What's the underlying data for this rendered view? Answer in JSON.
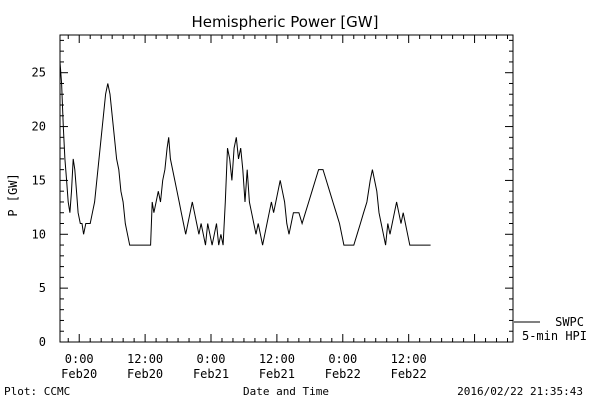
{
  "chart_data": {
    "type": "line",
    "title": "Hemispheric Power [GW]",
    "xlabel": "Date and Time",
    "ylabel": "P [GW]",
    "ylim": [
      0,
      28.5
    ],
    "xlim": [
      -3.5,
      79
    ],
    "grid": false,
    "legend_position": "bottom-right",
    "y_ticks": [
      0,
      5,
      10,
      15,
      20,
      25
    ],
    "x_ticks": [
      {
        "value": 0,
        "line1": "0:00",
        "line2": "Feb20"
      },
      {
        "value": 12,
        "line1": "12:00",
        "line2": "Feb20"
      },
      {
        "value": 24,
        "line1": "0:00",
        "line2": "Feb21"
      },
      {
        "value": 36,
        "line1": "12:00",
        "line2": "Feb21"
      },
      {
        "value": 48,
        "line1": "0:00",
        "line2": "Feb22"
      },
      {
        "value": 60,
        "line1": "12:00",
        "line2": "Feb22"
      }
    ],
    "series": [
      {
        "name": "SWPC",
        "values": [
          [
            -3.5,
            26
          ],
          [
            -3.2,
            24
          ],
          [
            -2.9,
            20
          ],
          [
            -2.6,
            17
          ],
          [
            -2.3,
            15
          ],
          [
            -2.0,
            13
          ],
          [
            -1.7,
            12
          ],
          [
            -1.4,
            14
          ],
          [
            -1.1,
            17
          ],
          [
            -0.8,
            16
          ],
          [
            -0.5,
            14
          ],
          [
            -0.2,
            12
          ],
          [
            0.2,
            11
          ],
          [
            0.5,
            11
          ],
          [
            0.8,
            10
          ],
          [
            1.2,
            11
          ],
          [
            1.6,
            11
          ],
          [
            2.0,
            11
          ],
          [
            2.4,
            12
          ],
          [
            2.8,
            13
          ],
          [
            3.2,
            15
          ],
          [
            3.6,
            17
          ],
          [
            4.0,
            19
          ],
          [
            4.4,
            21
          ],
          [
            4.8,
            23
          ],
          [
            5.2,
            24
          ],
          [
            5.6,
            23
          ],
          [
            6.0,
            21
          ],
          [
            6.4,
            19
          ],
          [
            6.8,
            17
          ],
          [
            7.2,
            16
          ],
          [
            7.6,
            14
          ],
          [
            8.0,
            13
          ],
          [
            8.4,
            11
          ],
          [
            8.8,
            10
          ],
          [
            9.2,
            9
          ],
          [
            10,
            9
          ],
          [
            11,
            9
          ],
          [
            12,
            9
          ],
          [
            13.0,
            9
          ],
          [
            13.3,
            13
          ],
          [
            13.6,
            12
          ],
          [
            14.0,
            13
          ],
          [
            14.4,
            14
          ],
          [
            14.8,
            13
          ],
          [
            15.2,
            15
          ],
          [
            15.6,
            16
          ],
          [
            16.0,
            18
          ],
          [
            16.3,
            19
          ],
          [
            16.6,
            17
          ],
          [
            17.0,
            16
          ],
          [
            17.4,
            15
          ],
          [
            17.8,
            14
          ],
          [
            18.2,
            13
          ],
          [
            18.6,
            12
          ],
          [
            19.0,
            11
          ],
          [
            19.4,
            10
          ],
          [
            19.8,
            11
          ],
          [
            20.2,
            12
          ],
          [
            20.6,
            13
          ],
          [
            21.0,
            12
          ],
          [
            21.4,
            11
          ],
          [
            21.8,
            10
          ],
          [
            22.2,
            11
          ],
          [
            22.6,
            10
          ],
          [
            23.0,
            9
          ],
          [
            23.4,
            11
          ],
          [
            23.8,
            10
          ],
          [
            24.2,
            9
          ],
          [
            24.6,
            10
          ],
          [
            25.0,
            11
          ],
          [
            25.4,
            9
          ],
          [
            25.8,
            10
          ],
          [
            26.2,
            9
          ],
          [
            26.6,
            13
          ],
          [
            27.0,
            18
          ],
          [
            27.4,
            17
          ],
          [
            27.8,
            15
          ],
          [
            28.2,
            18
          ],
          [
            28.6,
            19
          ],
          [
            29.0,
            17
          ],
          [
            29.4,
            18
          ],
          [
            29.8,
            16
          ],
          [
            30.2,
            13
          ],
          [
            30.6,
            16
          ],
          [
            31.0,
            13
          ],
          [
            31.4,
            12
          ],
          [
            31.8,
            11
          ],
          [
            32.2,
            10
          ],
          [
            32.6,
            11
          ],
          [
            33.0,
            10
          ],
          [
            33.4,
            9
          ],
          [
            33.8,
            10
          ],
          [
            34.2,
            11
          ],
          [
            34.6,
            12
          ],
          [
            35.0,
            13
          ],
          [
            35.4,
            12
          ],
          [
            35.8,
            13
          ],
          [
            36.2,
            14
          ],
          [
            36.6,
            15
          ],
          [
            37.0,
            14
          ],
          [
            37.4,
            13
          ],
          [
            37.8,
            11
          ],
          [
            38.2,
            10
          ],
          [
            38.6,
            11
          ],
          [
            39.0,
            12
          ],
          [
            40.0,
            12
          ],
          [
            40.6,
            11
          ],
          [
            41.2,
            12
          ],
          [
            41.8,
            13
          ],
          [
            42.4,
            14
          ],
          [
            43.0,
            15
          ],
          [
            43.6,
            16
          ],
          [
            44.4,
            16
          ],
          [
            45.0,
            15
          ],
          [
            45.6,
            14
          ],
          [
            46.2,
            13
          ],
          [
            46.8,
            12
          ],
          [
            47.4,
            11
          ],
          [
            47.8,
            10
          ],
          [
            48.2,
            9
          ],
          [
            49,
            9
          ],
          [
            50,
            9
          ],
          [
            50.6,
            10
          ],
          [
            51.2,
            11
          ],
          [
            51.8,
            12
          ],
          [
            52.4,
            13
          ],
          [
            53.0,
            15
          ],
          [
            53.4,
            16
          ],
          [
            53.8,
            15
          ],
          [
            54.2,
            14
          ],
          [
            54.6,
            12
          ],
          [
            55.0,
            11
          ],
          [
            55.4,
            10
          ],
          [
            55.8,
            9
          ],
          [
            56.2,
            11
          ],
          [
            56.6,
            10
          ],
          [
            57.0,
            11
          ],
          [
            57.4,
            12
          ],
          [
            57.8,
            13
          ],
          [
            58.2,
            12
          ],
          [
            58.6,
            11
          ],
          [
            59.0,
            12
          ],
          [
            59.4,
            11
          ],
          [
            59.8,
            10
          ],
          [
            60.2,
            9
          ],
          [
            62,
            9
          ],
          [
            64,
            9
          ]
        ]
      },
      {
        "name": "5-min HPI",
        "values": []
      }
    ]
  },
  "footer": {
    "left": "Plot: CCMC",
    "center": "Date and Time",
    "right": "2016/02/22 21:35:43"
  },
  "colors": {
    "line": "#000000",
    "background": "#ffffff"
  }
}
